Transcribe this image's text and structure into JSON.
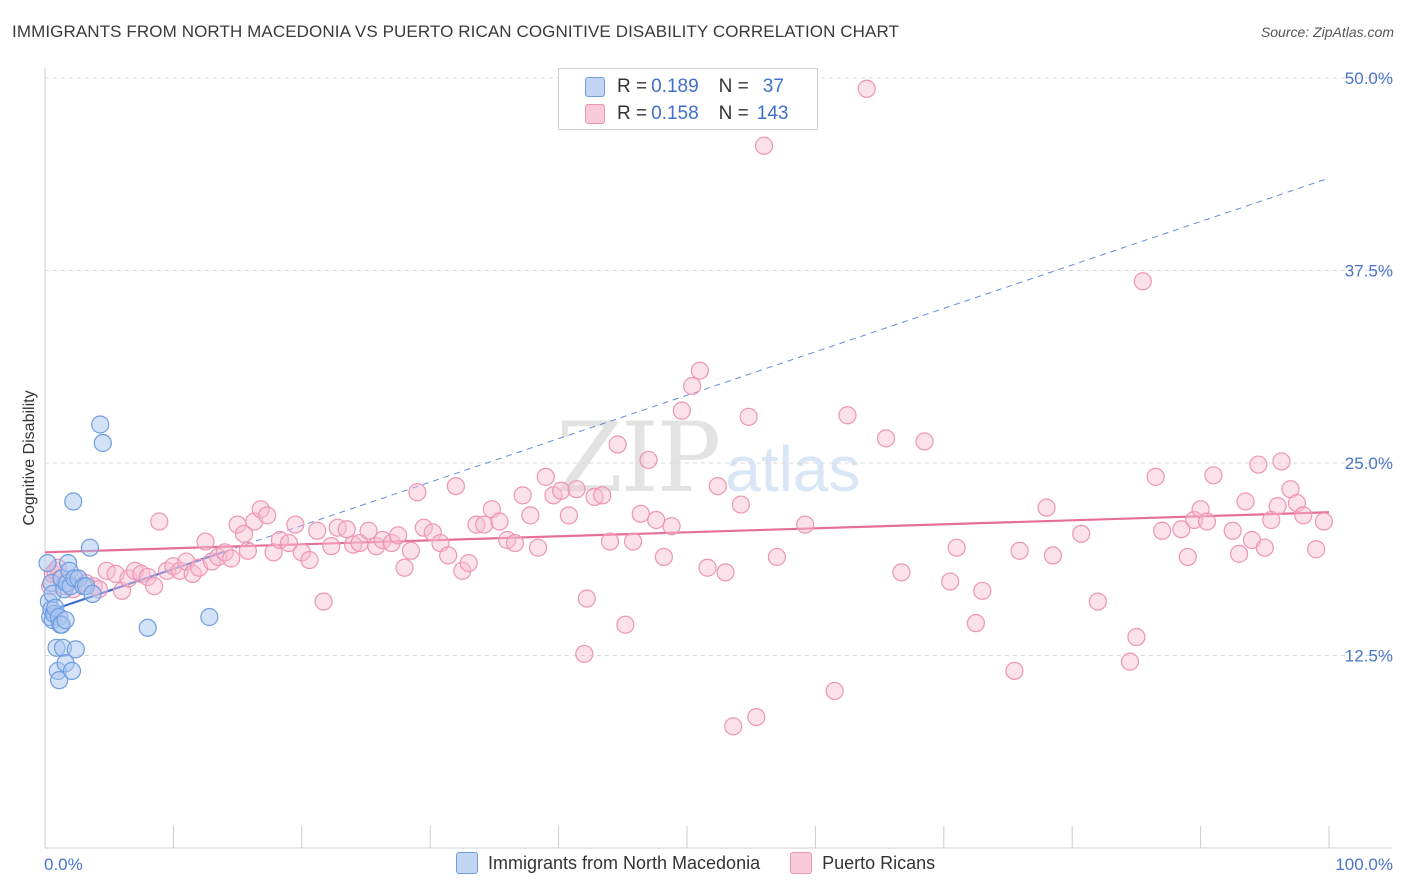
{
  "title": "IMMIGRANTS FROM NORTH MACEDONIA VS PUERTO RICAN COGNITIVE DISABILITY CORRELATION CHART",
  "source": "Source: ZipAtlas.com",
  "watermark": {
    "zip": "ZIP",
    "atlas": "atlas"
  },
  "legend": {
    "series1": {
      "r_label": "R = ",
      "r_value": "0.189",
      "n_label": "N = ",
      "n_value": "37"
    },
    "series2": {
      "r_label": "R = ",
      "r_value": "0.158",
      "n_label": "N = ",
      "n_value": "143"
    }
  },
  "bottom_legend": {
    "series1": "Immigrants from North Macedonia",
    "series2": "Puerto Ricans"
  },
  "colors": {
    "blue_fill": "#a9c6f0",
    "blue_stroke": "#6f9de0",
    "blue_line": "#3d6fd0",
    "pink_fill": "#f7bdd0",
    "pink_stroke": "#ee95b4",
    "pink_line": "#e56f98",
    "axis_text": "#4a74c9",
    "grid": "#d8d8d8"
  },
  "chart_data": {
    "type": "scatter",
    "title": "IMMIGRANTS FROM NORTH MACEDONIA VS PUERTO RICAN COGNITIVE DISABILITY CORRELATION CHART",
    "xlabel": "",
    "ylabel": "Cognitive Disability",
    "xlim": [
      0,
      100
    ],
    "ylim": [
      0,
      50
    ],
    "x_tick_labels": [
      "0.0%",
      "100.0%"
    ],
    "y_ticks": [
      12.5,
      25.0,
      37.5,
      50.0
    ],
    "y_tick_labels": [
      "12.5%",
      "25.0%",
      "37.5%",
      "50.0%"
    ],
    "series": [
      {
        "name": "Immigrants from North Macedonia",
        "R": 0.189,
        "N": 37,
        "trend": {
          "x0": 0,
          "y0": 15.3,
          "x1": 100,
          "y1": 43.5,
          "solid_until": 14
        },
        "points": [
          [
            0.2,
            18.5
          ],
          [
            0.3,
            16.0
          ],
          [
            0.4,
            15.0
          ],
          [
            0.5,
            15.5
          ],
          [
            0.5,
            17.2
          ],
          [
            0.6,
            16.5
          ],
          [
            0.6,
            14.8
          ],
          [
            0.7,
            15.2
          ],
          [
            0.8,
            15.6
          ],
          [
            0.9,
            13.0
          ],
          [
            1.0,
            11.5
          ],
          [
            1.1,
            10.9
          ],
          [
            1.1,
            15.0
          ],
          [
            1.2,
            14.5
          ],
          [
            1.3,
            17.5
          ],
          [
            1.3,
            14.5
          ],
          [
            1.4,
            13.0
          ],
          [
            1.5,
            16.8
          ],
          [
            1.6,
            14.8
          ],
          [
            1.6,
            12.0
          ],
          [
            1.7,
            17.2
          ],
          [
            1.8,
            18.5
          ],
          [
            1.9,
            18.0
          ],
          [
            2.0,
            17.0
          ],
          [
            2.1,
            11.5
          ],
          [
            2.2,
            22.5
          ],
          [
            2.3,
            17.5
          ],
          [
            2.4,
            12.9
          ],
          [
            2.6,
            17.5
          ],
          [
            3.0,
            17.0
          ],
          [
            3.2,
            17.0
          ],
          [
            3.5,
            19.5
          ],
          [
            3.7,
            16.5
          ],
          [
            4.3,
            27.5
          ],
          [
            4.5,
            26.3
          ],
          [
            8.0,
            14.3
          ],
          [
            12.8,
            15.0
          ]
        ]
      },
      {
        "name": "Puerto Ricans",
        "R": 0.158,
        "N": 143,
        "trend": {
          "x0": 0,
          "y0": 19.2,
          "x1": 100,
          "y1": 21.8
        },
        "points": [
          [
            0.4,
            17.0
          ],
          [
            0.6,
            17.8
          ],
          [
            0.8,
            18.0
          ],
          [
            1.0,
            18.2
          ],
          [
            1.2,
            17.5
          ],
          [
            1.5,
            17.0
          ],
          [
            1.8,
            17.2
          ],
          [
            2.2,
            16.8
          ],
          [
            2.6,
            17.5
          ],
          [
            3.2,
            17.2
          ],
          [
            3.8,
            17.0
          ],
          [
            4.2,
            16.8
          ],
          [
            4.8,
            18.0
          ],
          [
            5.5,
            17.8
          ],
          [
            6.0,
            16.7
          ],
          [
            6.5,
            17.5
          ],
          [
            7.0,
            18.0
          ],
          [
            7.5,
            17.8
          ],
          [
            8.0,
            17.6
          ],
          [
            8.5,
            17.0
          ],
          [
            8.9,
            21.2
          ],
          [
            9.5,
            18.0
          ],
          [
            10.0,
            18.3
          ],
          [
            10.5,
            18.0
          ],
          [
            11.0,
            18.6
          ],
          [
            11.5,
            17.8
          ],
          [
            12.0,
            18.2
          ],
          [
            12.5,
            19.9
          ],
          [
            13.0,
            18.6
          ],
          [
            13.5,
            18.9
          ],
          [
            14.0,
            19.2
          ],
          [
            14.5,
            18.8
          ],
          [
            15.0,
            21.0
          ],
          [
            15.5,
            20.4
          ],
          [
            15.8,
            19.3
          ],
          [
            16.3,
            21.2
          ],
          [
            16.8,
            22.0
          ],
          [
            17.3,
            21.6
          ],
          [
            17.8,
            19.2
          ],
          [
            18.3,
            20.0
          ],
          [
            19.0,
            19.8
          ],
          [
            19.5,
            21.0
          ],
          [
            20.0,
            19.2
          ],
          [
            20.6,
            18.7
          ],
          [
            21.2,
            20.6
          ],
          [
            21.7,
            16.0
          ],
          [
            22.3,
            19.6
          ],
          [
            22.8,
            20.8
          ],
          [
            23.5,
            20.7
          ],
          [
            24.0,
            19.7
          ],
          [
            24.5,
            19.8
          ],
          [
            25.2,
            20.6
          ],
          [
            25.8,
            19.6
          ],
          [
            26.3,
            20.0
          ],
          [
            27.0,
            19.8
          ],
          [
            27.5,
            20.3
          ],
          [
            28.0,
            18.2
          ],
          [
            28.5,
            19.3
          ],
          [
            29.0,
            23.1
          ],
          [
            29.5,
            20.8
          ],
          [
            30.2,
            20.5
          ],
          [
            30.8,
            19.8
          ],
          [
            31.4,
            19.0
          ],
          [
            32.0,
            23.5
          ],
          [
            32.5,
            18.0
          ],
          [
            33.0,
            18.5
          ],
          [
            33.6,
            21.0
          ],
          [
            34.2,
            21.0
          ],
          [
            34.8,
            22.0
          ],
          [
            35.4,
            21.2
          ],
          [
            36.0,
            20.0
          ],
          [
            36.6,
            19.8
          ],
          [
            37.2,
            22.9
          ],
          [
            37.8,
            21.6
          ],
          [
            38.4,
            19.5
          ],
          [
            39.0,
            24.1
          ],
          [
            39.6,
            22.9
          ],
          [
            40.2,
            23.2
          ],
          [
            40.8,
            21.6
          ],
          [
            41.4,
            23.3
          ],
          [
            42.0,
            12.6
          ],
          [
            42.2,
            16.2
          ],
          [
            42.8,
            22.8
          ],
          [
            43.4,
            22.9
          ],
          [
            44.0,
            19.9
          ],
          [
            44.6,
            26.2
          ],
          [
            45.2,
            14.5
          ],
          [
            45.8,
            19.9
          ],
          [
            46.4,
            21.7
          ],
          [
            47.0,
            25.2
          ],
          [
            47.6,
            21.3
          ],
          [
            48.2,
            18.9
          ],
          [
            48.8,
            20.9
          ],
          [
            49.6,
            28.4
          ],
          [
            50.4,
            30.0
          ],
          [
            51.0,
            31.0
          ],
          [
            51.6,
            18.2
          ],
          [
            52.4,
            23.5
          ],
          [
            53.0,
            17.9
          ],
          [
            53.6,
            7.9
          ],
          [
            54.2,
            22.3
          ],
          [
            54.8,
            28.0
          ],
          [
            55.4,
            8.5
          ],
          [
            56.0,
            45.6
          ],
          [
            57.0,
            18.9
          ],
          [
            59.2,
            21.0
          ],
          [
            61.5,
            10.2
          ],
          [
            62.5,
            28.1
          ],
          [
            64.0,
            49.3
          ],
          [
            65.5,
            26.6
          ],
          [
            66.7,
            17.9
          ],
          [
            68.5,
            26.4
          ],
          [
            70.5,
            17.3
          ],
          [
            71.0,
            19.5
          ],
          [
            72.5,
            14.6
          ],
          [
            73.0,
            16.7
          ],
          [
            75.5,
            11.5
          ],
          [
            75.9,
            19.3
          ],
          [
            78.0,
            22.1
          ],
          [
            78.5,
            19.0
          ],
          [
            80.7,
            20.4
          ],
          [
            82.0,
            16.0
          ],
          [
            84.5,
            12.1
          ],
          [
            85.0,
            13.7
          ],
          [
            85.5,
            36.8
          ],
          [
            86.5,
            24.1
          ],
          [
            87.0,
            20.6
          ],
          [
            88.5,
            20.7
          ],
          [
            89.0,
            18.9
          ],
          [
            89.5,
            21.3
          ],
          [
            90.0,
            22.0
          ],
          [
            90.5,
            21.2
          ],
          [
            91.0,
            24.2
          ],
          [
            92.5,
            20.6
          ],
          [
            93.0,
            19.1
          ],
          [
            93.5,
            22.5
          ],
          [
            94.0,
            20.0
          ],
          [
            94.5,
            24.9
          ],
          [
            95.0,
            19.5
          ],
          [
            95.5,
            21.3
          ],
          [
            96.0,
            22.2
          ],
          [
            96.3,
            25.1
          ],
          [
            97.0,
            23.3
          ],
          [
            97.5,
            22.4
          ],
          [
            98.0,
            21.6
          ],
          [
            99.0,
            19.4
          ],
          [
            99.6,
            21.2
          ]
        ]
      }
    ]
  }
}
